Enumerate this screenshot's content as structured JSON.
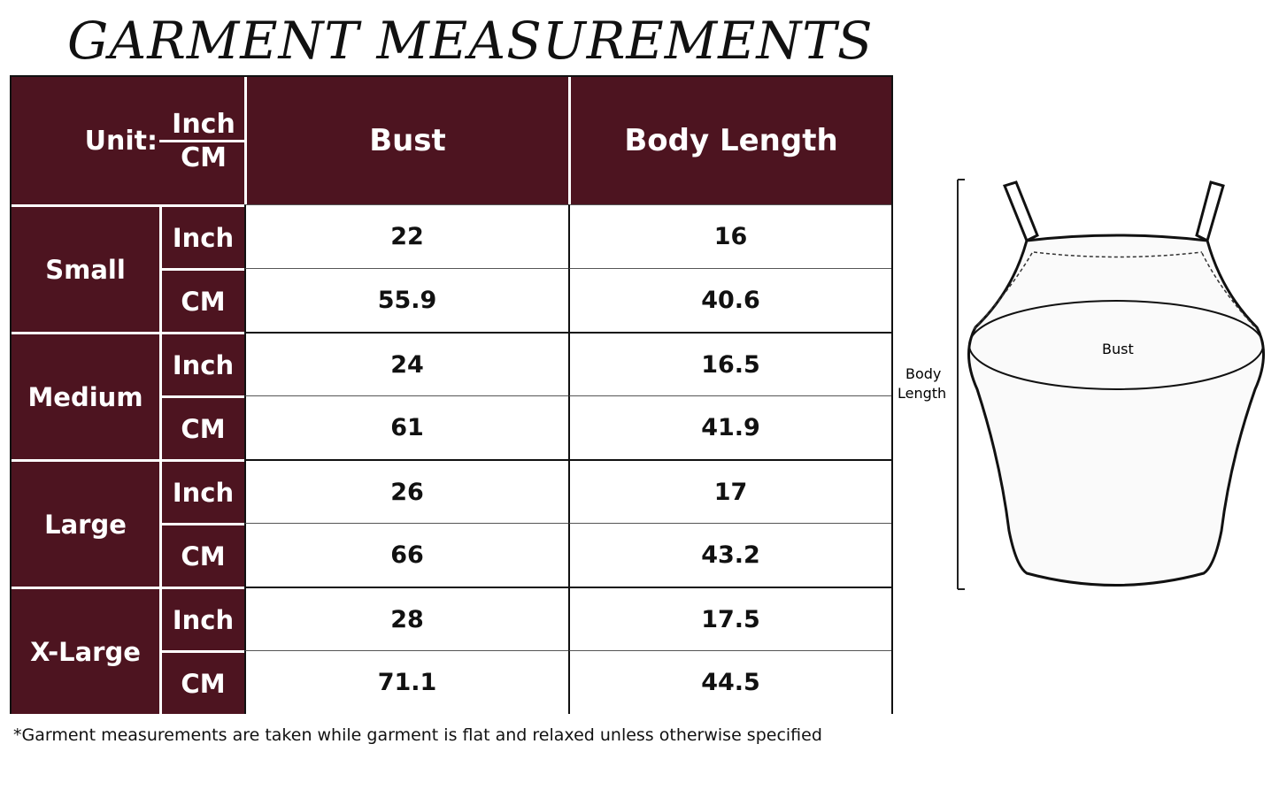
{
  "title": "GARMENT MEASUREMENTS",
  "table": {
    "unit_label": "Unit:",
    "unit_top": "Inch",
    "unit_bottom": "CM",
    "columns": [
      "Bust",
      "Body Length"
    ],
    "rows": [
      {
        "size": "Small",
        "inch": {
          "unit": "Inch",
          "bust": "22",
          "length": "16"
        },
        "cm": {
          "unit": "CM",
          "bust": "55.9",
          "length": "40.6"
        }
      },
      {
        "size": "Medium",
        "inch": {
          "unit": "Inch",
          "bust": "24",
          "length": "16.5"
        },
        "cm": {
          "unit": "CM",
          "bust": "61",
          "length": "41.9"
        }
      },
      {
        "size": "Large",
        "inch": {
          "unit": "Inch",
          "bust": "26",
          "length": "17"
        },
        "cm": {
          "unit": "CM",
          "bust": "66",
          "length": "43.2"
        }
      },
      {
        "size": "X-Large",
        "inch": {
          "unit": "Inch",
          "bust": "28",
          "length": "17.5"
        },
        "cm": {
          "unit": "CM",
          "bust": "71.1",
          "length": "44.5"
        }
      }
    ]
  },
  "diagram": {
    "bust_label": "Bust",
    "length_label_1": "Body",
    "length_label_2": "Length"
  },
  "note": "*Garment measurements are taken while garment is flat and relaxed unless otherwise specified",
  "colors": {
    "header": "#4d1420"
  }
}
